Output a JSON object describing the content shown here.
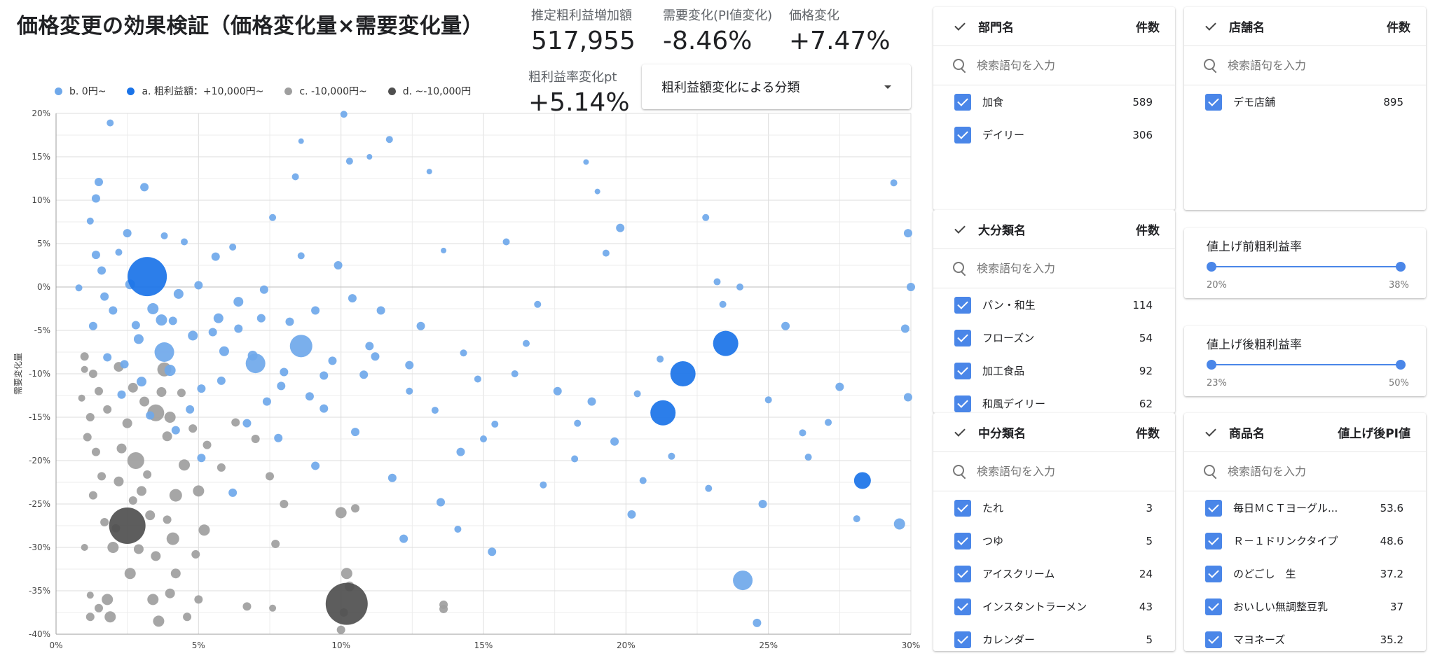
{
  "title": "価格変更の効果検証（価格変化量×需要変化量）",
  "kpis": {
    "profit_increase": {
      "label": "推定粗利益増加額",
      "value": "517,955"
    },
    "demand_change": {
      "label": "需要変化(PI値変化)",
      "value": "-8.46%"
    },
    "price_change": {
      "label": "価格変化",
      "value": "+7.47%"
    },
    "margin_change": {
      "label": "粗利益率変化pt",
      "value": "+5.14%"
    }
  },
  "dropdown": {
    "label": "粗利益額変化による分類"
  },
  "legend": [
    {
      "label": "b. 0円~",
      "color": "#6fa8ea"
    },
    {
      "label": "a. 粗利益額：+10,000円~",
      "color": "#1a73e8"
    },
    {
      "label": "c. -10,000円~",
      "color": "#9e9e9e"
    },
    {
      "label": "d. ~-10,000円",
      "color": "#4f4f4f"
    }
  ],
  "chart_data": {
    "type": "scatter",
    "ylabel": "需要変化量",
    "xlabel": "",
    "x_ticks": [
      "0%",
      "5%",
      "10%",
      "15%",
      "20%",
      "25%",
      "30%"
    ],
    "y_ticks": [
      "20%",
      "15%",
      "10%",
      "5%",
      "0%",
      "-5%",
      "-10%",
      "-15%",
      "-20%",
      "-25%",
      "-30%",
      "-35%",
      "-40%"
    ],
    "xlim": [
      0,
      30
    ],
    "ylim": [
      -40,
      20
    ],
    "grid": true,
    "series": [
      {
        "name": "a. 粗利益額：+10,000円~",
        "color": "#1a73e8",
        "points": [
          [
            3.2,
            1.2,
            14
          ],
          [
            23.5,
            -6.5,
            9
          ],
          [
            22.0,
            -10.0,
            9
          ],
          [
            21.3,
            -14.5,
            9
          ],
          [
            28.3,
            -22.3,
            6
          ]
        ]
      },
      {
        "name": "d. ~-10,000円",
        "color": "#4f4f4f",
        "points": [
          [
            2.5,
            -27.5,
            13
          ],
          [
            10.2,
            -36.5,
            15
          ]
        ]
      },
      {
        "name": "b. 0円~",
        "color": "#6fa8ea",
        "points": [
          [
            8.6,
            -6.8,
            8
          ],
          [
            24.1,
            -33.8,
            7
          ],
          [
            7.0,
            -8.8,
            7
          ],
          [
            3.8,
            -7.5,
            7
          ],
          [
            29.6,
            -27.3,
            4
          ],
          [
            29.9,
            6.2,
            3
          ],
          [
            29.4,
            12.0,
            2.5
          ],
          [
            30.0,
            0.0,
            3
          ],
          [
            29.8,
            -4.8,
            3
          ],
          [
            29.9,
            -12.7,
            3
          ],
          [
            22.8,
            8.0,
            2.5
          ],
          [
            23.2,
            0.6,
            2.5
          ],
          [
            24.0,
            0.0,
            2.5
          ],
          [
            24.8,
            -25.0,
            3
          ],
          [
            25.6,
            -4.5,
            3
          ],
          [
            27.5,
            -11.5,
            3
          ],
          [
            26.2,
            -16.8,
            2.5
          ],
          [
            24.6,
            -38.7,
            3
          ],
          [
            19.8,
            6.8,
            3
          ],
          [
            18.8,
            -13.2,
            3
          ],
          [
            20.2,
            -26.2,
            3
          ],
          [
            16.5,
            -6.5,
            2.5
          ],
          [
            15.0,
            -17.5,
            2.5
          ],
          [
            14.2,
            -19.0,
            3
          ],
          [
            13.5,
            -24.8,
            3
          ],
          [
            15.3,
            -30.5,
            3
          ],
          [
            17.6,
            -12.0,
            3
          ],
          [
            12.4,
            -9.0,
            3
          ],
          [
            11.8,
            -22.0,
            3
          ],
          [
            12.2,
            -29.0,
            3
          ],
          [
            11.0,
            -6.8,
            3
          ],
          [
            10.1,
            19.9,
            2.5
          ],
          [
            11.7,
            17.0,
            2.5
          ],
          [
            8.6,
            16.8,
            2
          ],
          [
            10.3,
            14.5,
            2.5
          ],
          [
            11.0,
            15.0,
            2
          ],
          [
            8.4,
            12.7,
            2.5
          ],
          [
            9.9,
            2.5,
            3
          ],
          [
            6.7,
            -15.7,
            3
          ],
          [
            5.1,
            -19.7,
            3
          ],
          [
            7.6,
            8.0,
            2.5
          ],
          [
            8.6,
            3.6,
            2.5
          ],
          [
            6.2,
            4.6,
            2.5
          ],
          [
            5.6,
            3.5,
            3
          ],
          [
            4.5,
            5.2,
            2.5
          ],
          [
            3.8,
            5.9,
            2.5
          ],
          [
            1.9,
            18.9,
            2.5
          ],
          [
            1.5,
            12.1,
            3
          ],
          [
            1.4,
            10.2,
            3
          ],
          [
            1.2,
            7.6,
            2.5
          ],
          [
            2.5,
            6.2,
            3
          ],
          [
            3.1,
            11.5,
            3
          ],
          [
            2.2,
            4.0,
            2.5
          ],
          [
            1.4,
            3.7,
            3
          ],
          [
            0.8,
            -0.1,
            2.5
          ],
          [
            1.7,
            -1.1,
            3
          ],
          [
            2.0,
            -2.7,
            3
          ],
          [
            2.8,
            -4.4,
            3
          ],
          [
            4.1,
            -3.9,
            3
          ],
          [
            4.8,
            -5.6,
            3.5
          ],
          [
            5.7,
            -3.6,
            3.5
          ],
          [
            6.4,
            -4.8,
            3
          ],
          [
            7.2,
            -3.6,
            3
          ],
          [
            8.2,
            -4.0,
            3
          ],
          [
            9.1,
            -2.7,
            3
          ],
          [
            10.4,
            -1.3,
            3
          ],
          [
            11.4,
            -2.7,
            3
          ],
          [
            12.8,
            -4.5,
            3
          ],
          [
            14.3,
            -7.6,
            2.5
          ],
          [
            16.1,
            -10.0,
            2.5
          ],
          [
            18.3,
            -15.7,
            2.5
          ],
          [
            19.6,
            -17.8,
            3
          ],
          [
            20.4,
            -12.3,
            2.5
          ],
          [
            21.2,
            -8.3,
            2.5
          ],
          [
            13.1,
            13.3,
            2
          ],
          [
            18.6,
            14.4,
            2
          ],
          [
            19.0,
            11.0,
            2
          ],
          [
            15.8,
            5.2,
            2.5
          ],
          [
            19.3,
            3.9,
            2.5
          ],
          [
            16.9,
            -2.0,
            2.5
          ],
          [
            13.6,
            4.2,
            2
          ],
          [
            9.4,
            -14.0,
            3
          ],
          [
            10.5,
            -16.7,
            3
          ],
          [
            7.8,
            -17.4,
            3
          ],
          [
            9.1,
            -20.6,
            3
          ],
          [
            6.2,
            -23.7,
            3
          ],
          [
            4.2,
            -16.5,
            3
          ],
          [
            3.0,
            -10.9,
            3.5
          ],
          [
            1.8,
            -8.1,
            3
          ],
          [
            2.3,
            -12.4,
            3
          ],
          [
            4.0,
            -9.6,
            4
          ],
          [
            5.1,
            -11.7,
            3
          ],
          [
            5.9,
            -7.4,
            3.5
          ],
          [
            7.9,
            -11.4,
            3
          ],
          [
            9.4,
            -10.2,
            3
          ],
          [
            11.2,
            -8.0,
            3
          ],
          [
            12.4,
            -12.0,
            2.5
          ],
          [
            13.3,
            -14.2,
            2.5
          ],
          [
            14.8,
            -10.6,
            2.5
          ],
          [
            15.4,
            -15.8,
            2.5
          ],
          [
            14.1,
            -27.9,
            2.5
          ],
          [
            17.1,
            -22.8,
            2.5
          ],
          [
            18.2,
            -19.8,
            2.5
          ],
          [
            21.6,
            -19.5,
            2.5
          ],
          [
            22.9,
            -23.2,
            2.5
          ],
          [
            23.4,
            -2.0,
            2.5
          ],
          [
            25.0,
            -13.0,
            2.5
          ],
          [
            26.4,
            -19.6,
            2.5
          ],
          [
            27.1,
            -15.6,
            2.5
          ],
          [
            28.1,
            -26.7,
            2.5
          ],
          [
            20.6,
            -22.3,
            2.5
          ],
          [
            6.4,
            -1.7,
            3.5
          ],
          [
            7.3,
            -0.3,
            3
          ],
          [
            3.4,
            -2.5,
            4
          ],
          [
            2.6,
            0.3,
            3.5
          ],
          [
            1.6,
            1.9,
            3
          ],
          [
            5.0,
            0.2,
            3
          ],
          [
            4.3,
            -0.8,
            3.5
          ],
          [
            2.9,
            -6.0,
            3.5
          ],
          [
            3.7,
            -3.8,
            4
          ],
          [
            6.9,
            -7.9,
            3.5
          ],
          [
            8.0,
            -9.8,
            3
          ],
          [
            5.8,
            -10.8,
            3
          ],
          [
            4.7,
            -14.1,
            3
          ],
          [
            7.4,
            -13.2,
            3
          ],
          [
            3.3,
            -14.8,
            3
          ],
          [
            8.9,
            -12.6,
            3
          ],
          [
            2.4,
            -8.9,
            3
          ],
          [
            1.3,
            -4.5,
            3
          ],
          [
            5.5,
            -5.2,
            3
          ],
          [
            9.7,
            -8.5,
            3
          ],
          [
            10.8,
            -10.1,
            3
          ]
        ]
      },
      {
        "name": "c. -10,000円~",
        "color": "#9e9e9e",
        "points": [
          [
            3.5,
            -14.5,
            6
          ],
          [
            2.8,
            -20.0,
            6
          ],
          [
            3.8,
            -9.5,
            5
          ],
          [
            4.5,
            -20.5,
            4
          ],
          [
            4.0,
            -15.0,
            4
          ],
          [
            5.0,
            -23.5,
            4
          ],
          [
            5.2,
            -28.0,
            4
          ],
          [
            4.2,
            -24.0,
            4.5
          ],
          [
            4.1,
            -29.0,
            4.5
          ],
          [
            2.6,
            -33.0,
            4
          ],
          [
            3.4,
            -36.0,
            4
          ],
          [
            3.6,
            -38.5,
            4
          ],
          [
            2.0,
            -30.0,
            4
          ],
          [
            1.8,
            -36.0,
            4
          ],
          [
            1.9,
            -38.0,
            4
          ],
          [
            1.5,
            -37.0,
            3
          ],
          [
            1.2,
            -38.0,
            3
          ],
          [
            1.2,
            -35.5,
            2.5
          ],
          [
            1.0,
            -30.0,
            2.5
          ],
          [
            1.3,
            -24.0,
            3
          ],
          [
            1.4,
            -19.0,
            3
          ],
          [
            1.2,
            -15.0,
            3
          ],
          [
            1.5,
            -12.0,
            3
          ],
          [
            1.3,
            -10.0,
            3
          ],
          [
            1.0,
            -8.0,
            3
          ],
          [
            2.2,
            -9.2,
            3.5
          ],
          [
            2.7,
            -11.6,
            3.5
          ],
          [
            3.1,
            -13.2,
            3.5
          ],
          [
            3.7,
            -12.1,
            3.5
          ],
          [
            2.5,
            -15.7,
            3.5
          ],
          [
            3.9,
            -17.2,
            3.5
          ],
          [
            2.3,
            -18.6,
            3.5
          ],
          [
            2.2,
            -22.4,
            3.5
          ],
          [
            3.0,
            -23.5,
            3.5
          ],
          [
            3.3,
            -26.3,
            3.5
          ],
          [
            4.2,
            -33.0,
            3.5
          ],
          [
            4.0,
            -35.3,
            3.5
          ],
          [
            3.5,
            -31.0,
            3.5
          ],
          [
            2.9,
            -30.2,
            3.5
          ],
          [
            1.7,
            -27.1,
            3
          ],
          [
            1.6,
            -21.8,
            3
          ],
          [
            1.1,
            -17.3,
            3
          ],
          [
            0.9,
            -12.8,
            2.5
          ],
          [
            1.0,
            -9.5,
            2.5
          ],
          [
            10.0,
            -26.0,
            4
          ],
          [
            10.5,
            -25.5,
            3
          ],
          [
            10.2,
            -33.0,
            4
          ],
          [
            10.3,
            -34.5,
            3.5
          ],
          [
            10.1,
            -37.5,
            3
          ],
          [
            10.0,
            -39.5,
            3
          ],
          [
            8.0,
            -25.0,
            3
          ],
          [
            7.7,
            -29.6,
            3
          ],
          [
            6.7,
            -36.8,
            3
          ],
          [
            7.6,
            -37.0,
            2.5
          ],
          [
            13.6,
            -37.1,
            3
          ],
          [
            13.6,
            -36.6,
            3
          ],
          [
            7.5,
            -21.8,
            3
          ],
          [
            7.0,
            -17.5,
            3
          ],
          [
            6.3,
            -15.6,
            3
          ],
          [
            5.8,
            -20.8,
            3
          ],
          [
            5.3,
            -18.2,
            3
          ],
          [
            4.8,
            -16.3,
            3
          ],
          [
            4.4,
            -12.2,
            3
          ],
          [
            3.9,
            -26.8,
            3
          ],
          [
            4.9,
            -30.8,
            3
          ],
          [
            5.0,
            -36.0,
            3
          ],
          [
            4.6,
            -38.0,
            3
          ],
          [
            2.1,
            -27.8,
            3
          ],
          [
            2.7,
            -24.6,
            3
          ],
          [
            3.2,
            -21.6,
            3
          ],
          [
            1.8,
            -14.1,
            3
          ]
        ]
      }
    ]
  },
  "filters": {
    "department": {
      "title": "部門名",
      "count_header": "件数",
      "placeholder": "検索語句を入力",
      "items": [
        {
          "label": "加食",
          "count": "589"
        },
        {
          "label": "デイリー",
          "count": "306"
        }
      ]
    },
    "store": {
      "title": "店舗名",
      "count_header": "件数",
      "placeholder": "検索語句を入力",
      "items": [
        {
          "label": "デモ店舗",
          "count": "895"
        }
      ]
    },
    "major_category": {
      "title": "大分類名",
      "count_header": "件数",
      "placeholder": "検索語句を入力",
      "items": [
        {
          "label": "パン・和生",
          "count": "114"
        },
        {
          "label": "フローズン",
          "count": "54"
        },
        {
          "label": "加工食品",
          "count": "92"
        },
        {
          "label": "和風デイリー",
          "count": "62"
        }
      ]
    },
    "mid_category": {
      "title": "中分類名",
      "count_header": "件数",
      "placeholder": "検索語句を入力",
      "items": [
        {
          "label": "たれ",
          "count": "3"
        },
        {
          "label": "つゆ",
          "count": "5"
        },
        {
          "label": "アイスクリーム",
          "count": "24"
        },
        {
          "label": "インスタントラーメン",
          "count": "43"
        },
        {
          "label": "カレンダー",
          "count": "5"
        }
      ]
    },
    "product": {
      "title": "商品名",
      "count_header": "値上げ後PI値",
      "placeholder": "検索語句を入力",
      "items": [
        {
          "label": "毎日ＭＣＴヨーグル...",
          "count": "53.6"
        },
        {
          "label": "Ｒ－１ドリンクタイプ",
          "count": "48.6"
        },
        {
          "label": "のどごし　生",
          "count": "37.2"
        },
        {
          "label": "おいしい無調整豆乳",
          "count": "37"
        },
        {
          "label": "マヨネーズ",
          "count": "35.2"
        }
      ]
    }
  },
  "sliders": {
    "before": {
      "title": "値上げ前粗利益率",
      "min": "20%",
      "max": "38%"
    },
    "after": {
      "title": "値上げ後粗利益率",
      "min": "23%",
      "max": "50%"
    }
  }
}
